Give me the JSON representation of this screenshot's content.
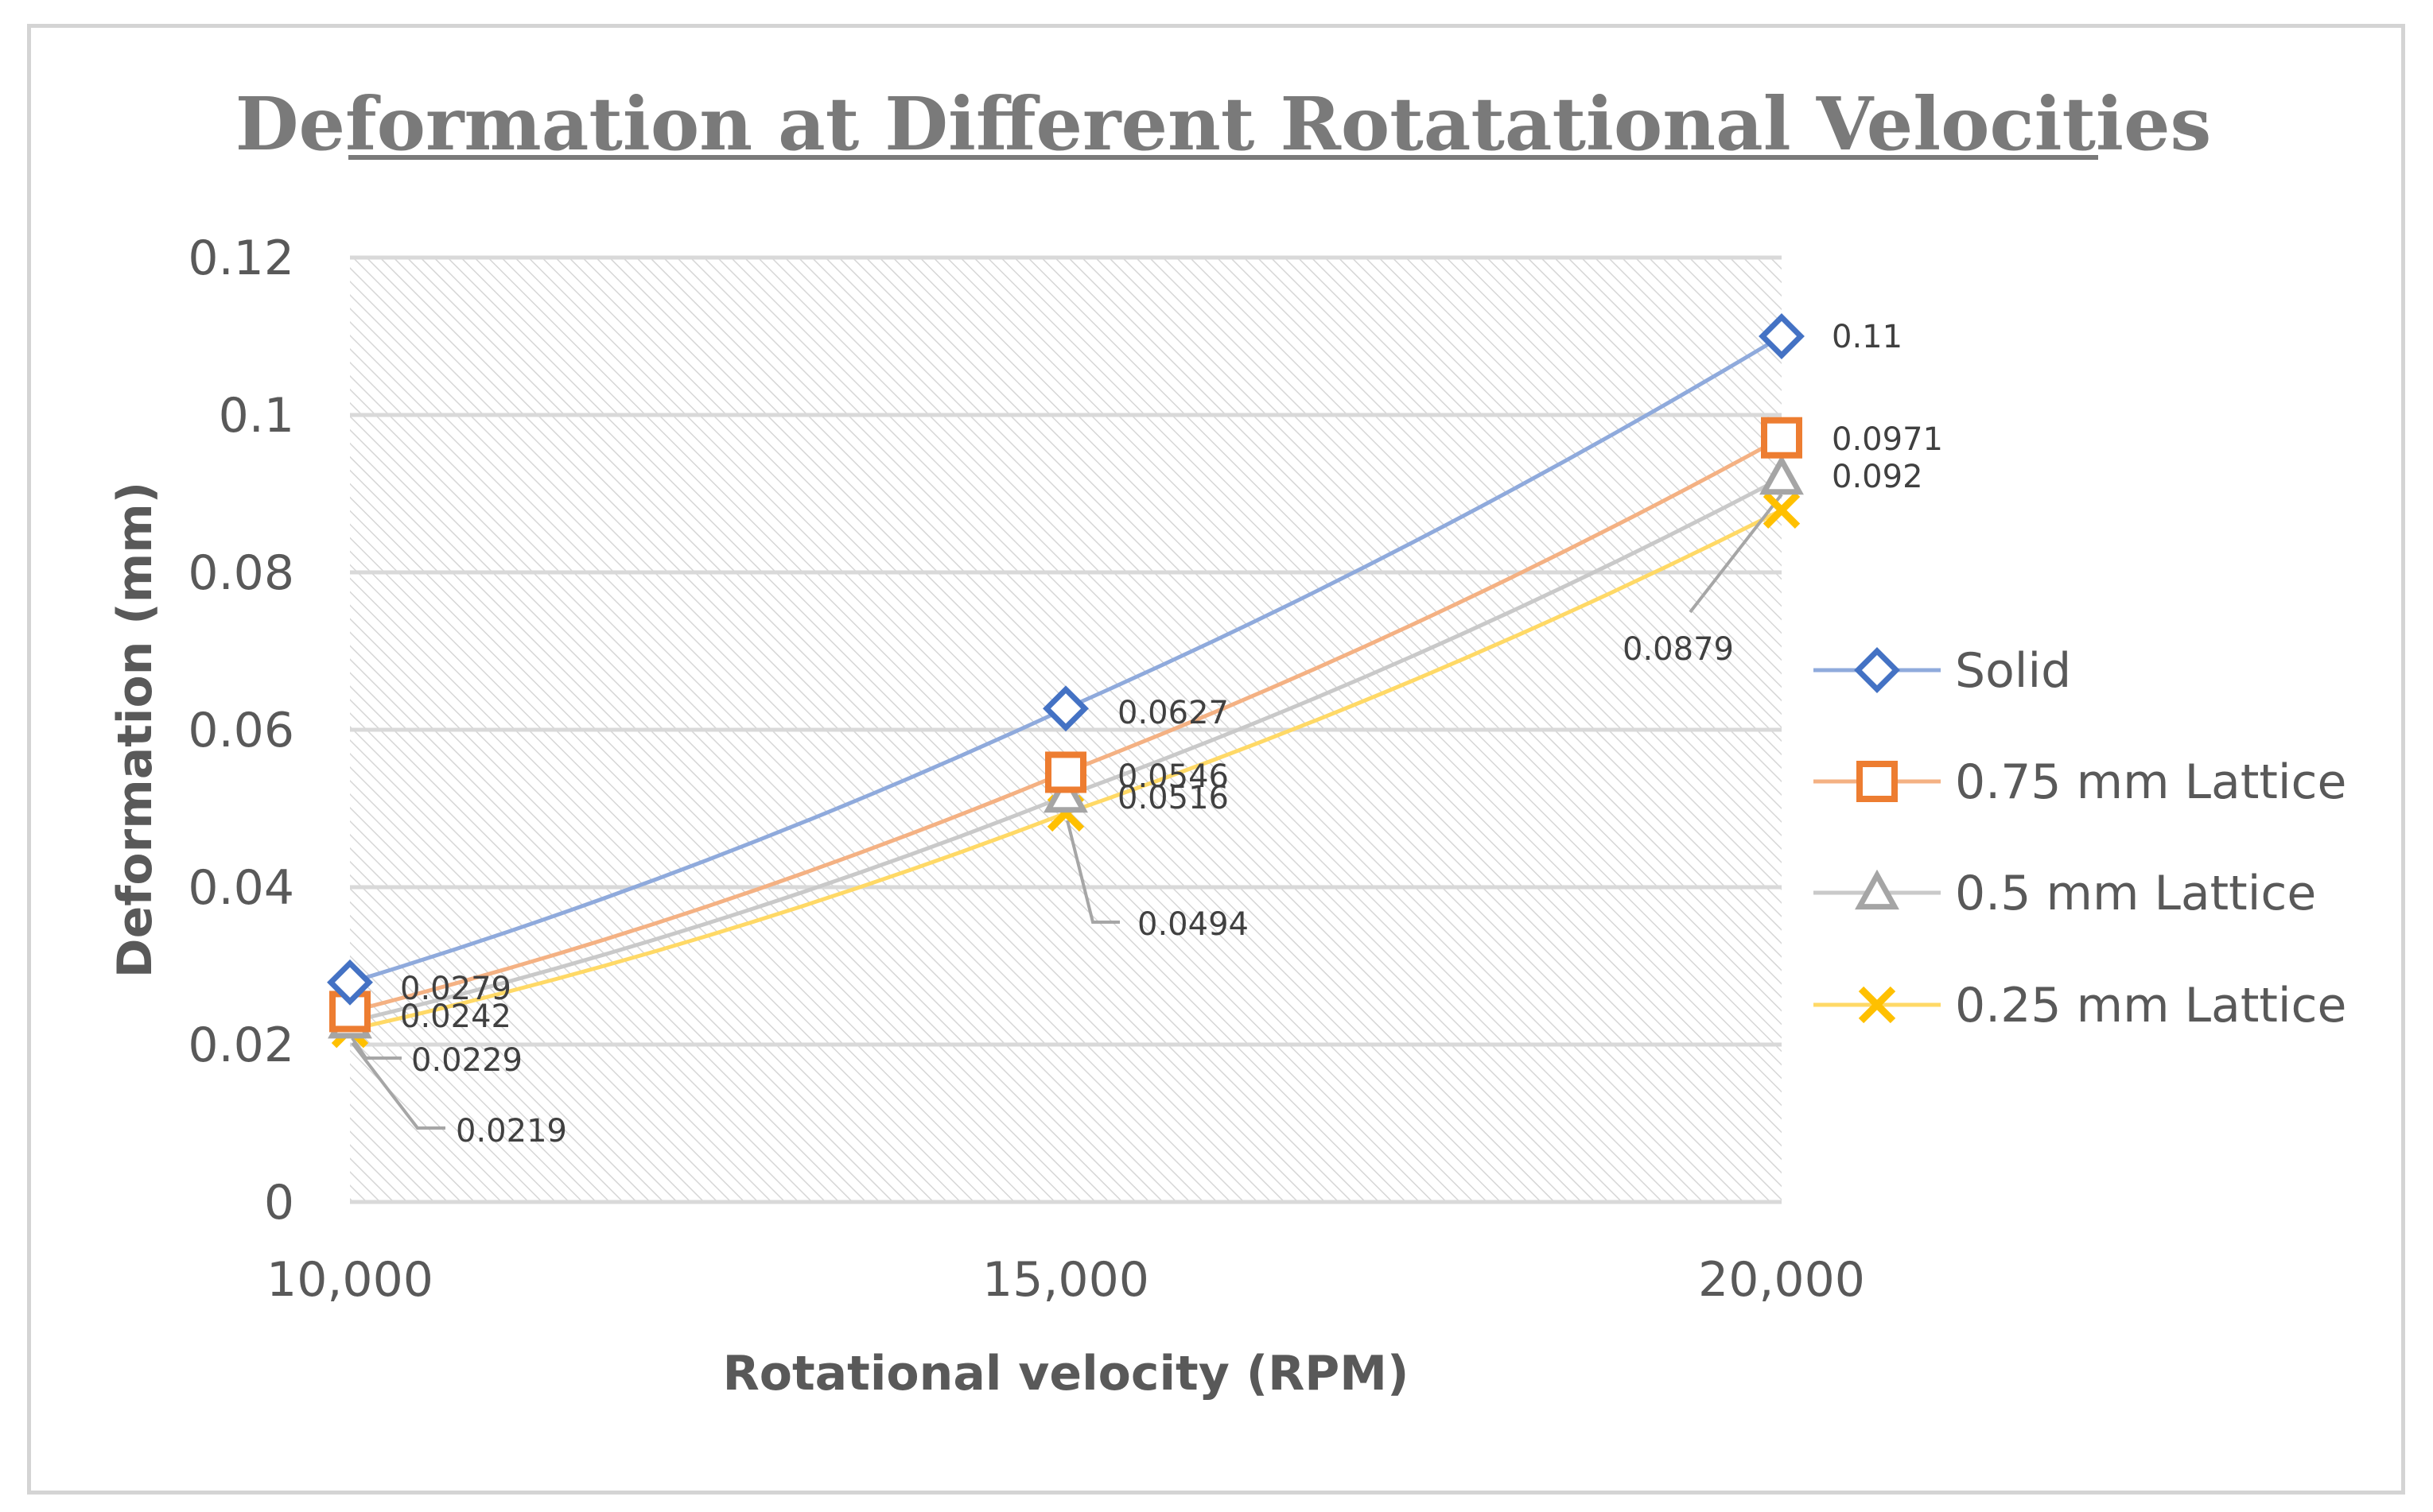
{
  "chart_data": {
    "type": "line",
    "title": "Deformation at Different Rotatational Velocities",
    "xlabel": "Rotational velocity (RPM)",
    "ylabel": "Deformation (mm)",
    "categories": [
      "10,000",
      "15,000",
      "20,000"
    ],
    "ylim": [
      0,
      0.12
    ],
    "yticks": [
      "0",
      "0.02",
      "0.04",
      "0.06",
      "0.08",
      "0.1",
      "0.12"
    ],
    "grid": true,
    "legend_position": "right",
    "series": [
      {
        "name": "Solid",
        "values": [
          0.0279,
          0.0627,
          0.11
        ],
        "labels": [
          "0.0279",
          "0.0627",
          "0.11"
        ],
        "color": "#4472c4",
        "line_color": "#8faadc",
        "marker": "diamond"
      },
      {
        "name": "0.75 mm Lattice",
        "values": [
          0.0242,
          0.0546,
          0.0971
        ],
        "labels": [
          "0.0242",
          "0.0546",
          "0.0971"
        ],
        "color": "#ed7d31",
        "line_color": "#f4b183",
        "marker": "square"
      },
      {
        "name": "0.5 mm Lattice",
        "values": [
          0.0229,
          0.0516,
          0.092
        ],
        "labels": [
          "0.0229",
          "0.0516",
          "0.092"
        ],
        "color": "#a5a5a5",
        "line_color": "#c9c9c9",
        "marker": "triangle"
      },
      {
        "name": "0.25 mm Lattice",
        "values": [
          0.0219,
          0.0494,
          0.0879
        ],
        "labels": [
          "0.0219",
          "0.0494",
          "0.0879"
        ],
        "color": "#ffc000",
        "line_color": "#ffd966",
        "marker": "x"
      }
    ]
  }
}
